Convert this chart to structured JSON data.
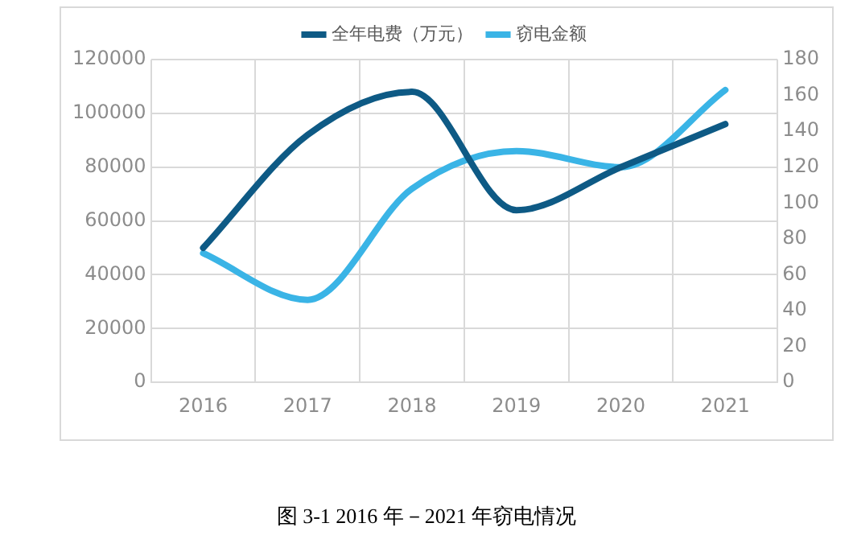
{
  "chart_data": {
    "type": "line",
    "categories": [
      "2016",
      "2017",
      "2018",
      "2019",
      "2020",
      "2021"
    ],
    "series": [
      {
        "name": "全年电费（万元）",
        "color": "#0e5a85",
        "values": [
          50000,
          92000,
          108000,
          64000,
          80000,
          96000
        ]
      },
      {
        "name": "窃电金额",
        "color": "#3ab4e6",
        "axis": "y2",
        "values": [
          72,
          46,
          108,
          129,
          120,
          163
        ]
      }
    ],
    "ylim": [
      0,
      120000
    ],
    "yticks": [
      0,
      20000,
      40000,
      60000,
      80000,
      100000,
      120000
    ],
    "y2lim": [
      0,
      180
    ],
    "y2ticks": [
      0,
      20,
      40,
      60,
      80,
      100,
      120,
      140,
      160,
      180
    ],
    "grid": true,
    "legend": "top",
    "marker": "none",
    "line_style": "solid",
    "annotations": [
      "图 3-1 2016 年－2021 年窃电情况"
    ]
  }
}
